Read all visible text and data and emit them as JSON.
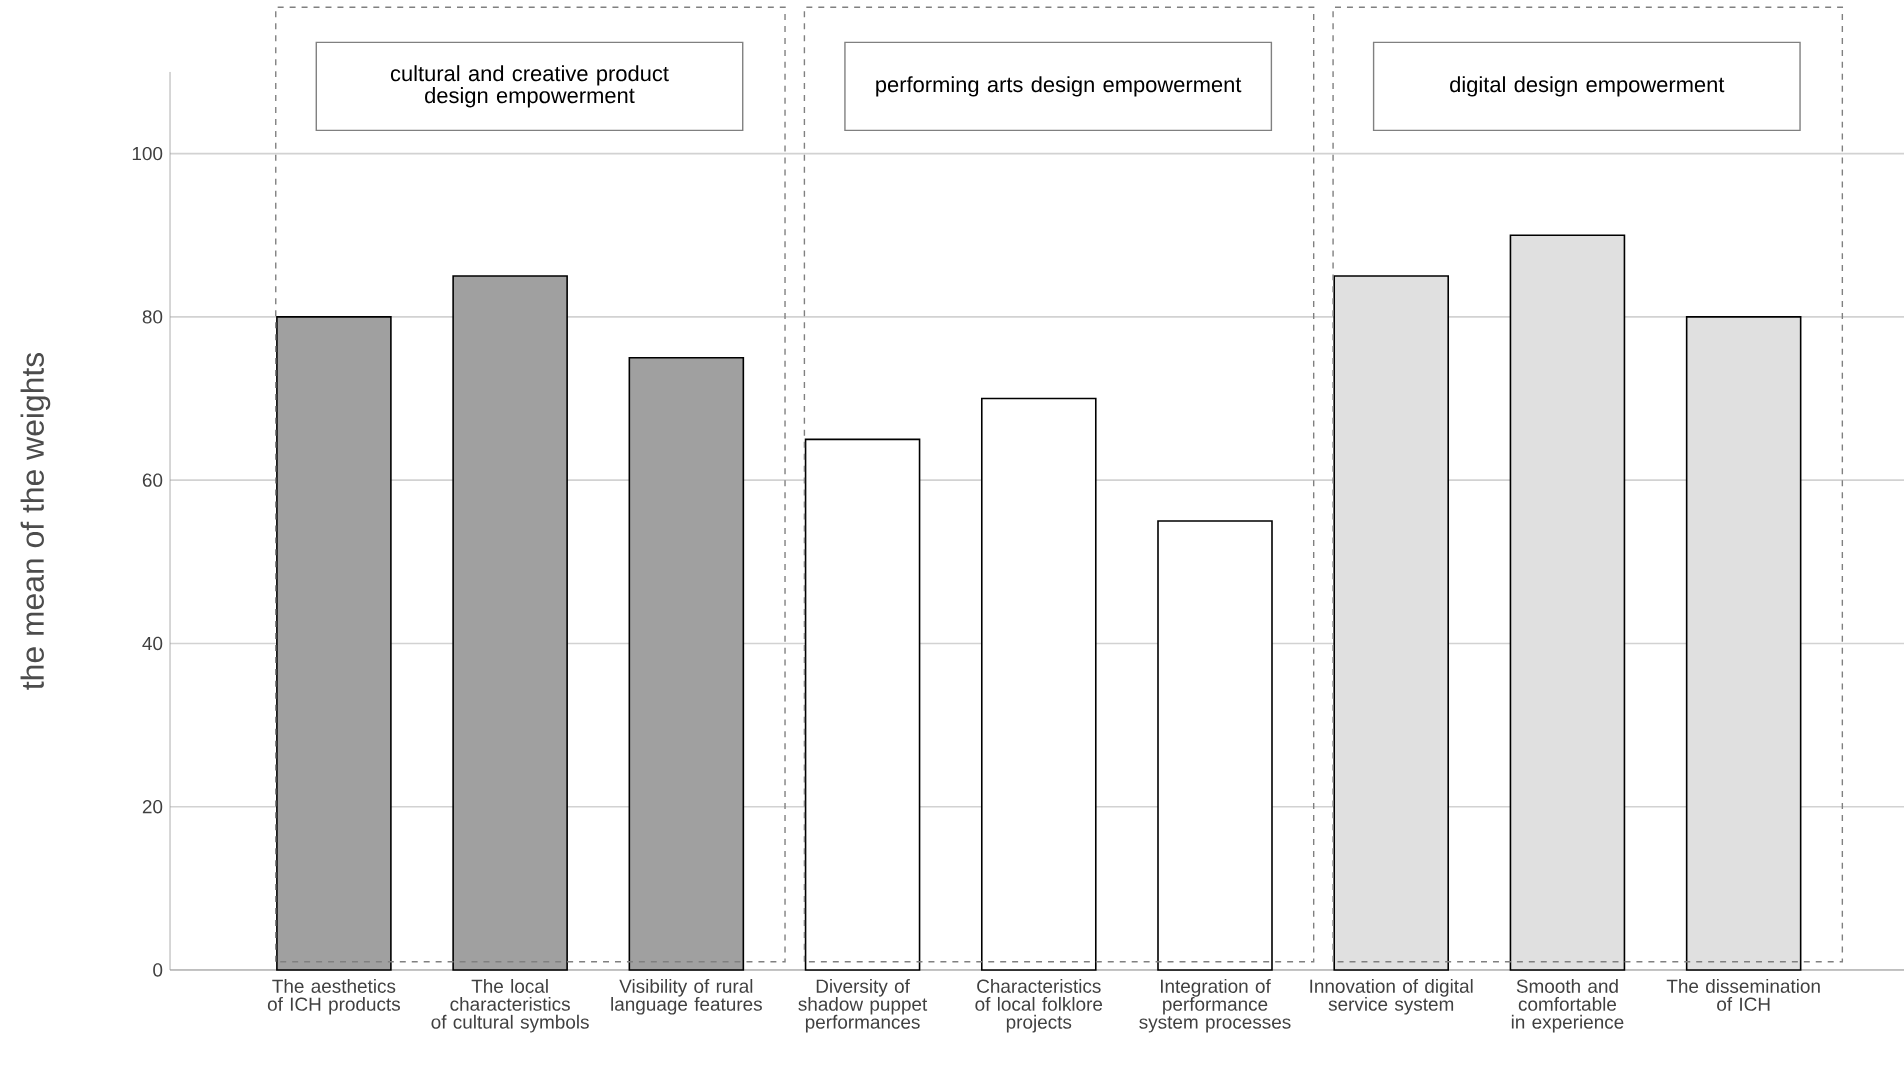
{
  "chart_data": {
    "type": "bar",
    "ylabel": "the mean of the weights",
    "categories": [
      "The aesthetics of ICH products",
      "The local characteristics of cultural symbols",
      "Visibility of rural language features",
      "Diversity of shadow puppet performances",
      "Characteristics of local folklore projects",
      "Integration of performance system processes",
      "Innovation of digital service system",
      "Smooth and comfortable in experience",
      "The dissemination of ICH"
    ],
    "values": [
      80,
      85,
      75,
      65,
      70,
      55,
      85,
      90,
      80
    ],
    "colors": [
      "#a0a0a0",
      "#a0a0a0",
      "#a0a0a0",
      "#ffffff",
      "#ffffff",
      "#ffffff",
      "#e0e0e0",
      "#e0e0e0",
      "#e0e0e0"
    ],
    "ylim": [
      0,
      110
    ],
    "yticks": [
      0,
      20,
      40,
      60,
      80,
      100
    ],
    "grid": "y",
    "annotations": [
      "cultural and creative product design empowerment",
      "performing arts design empowerment",
      "digital design empowerment"
    ]
  }
}
